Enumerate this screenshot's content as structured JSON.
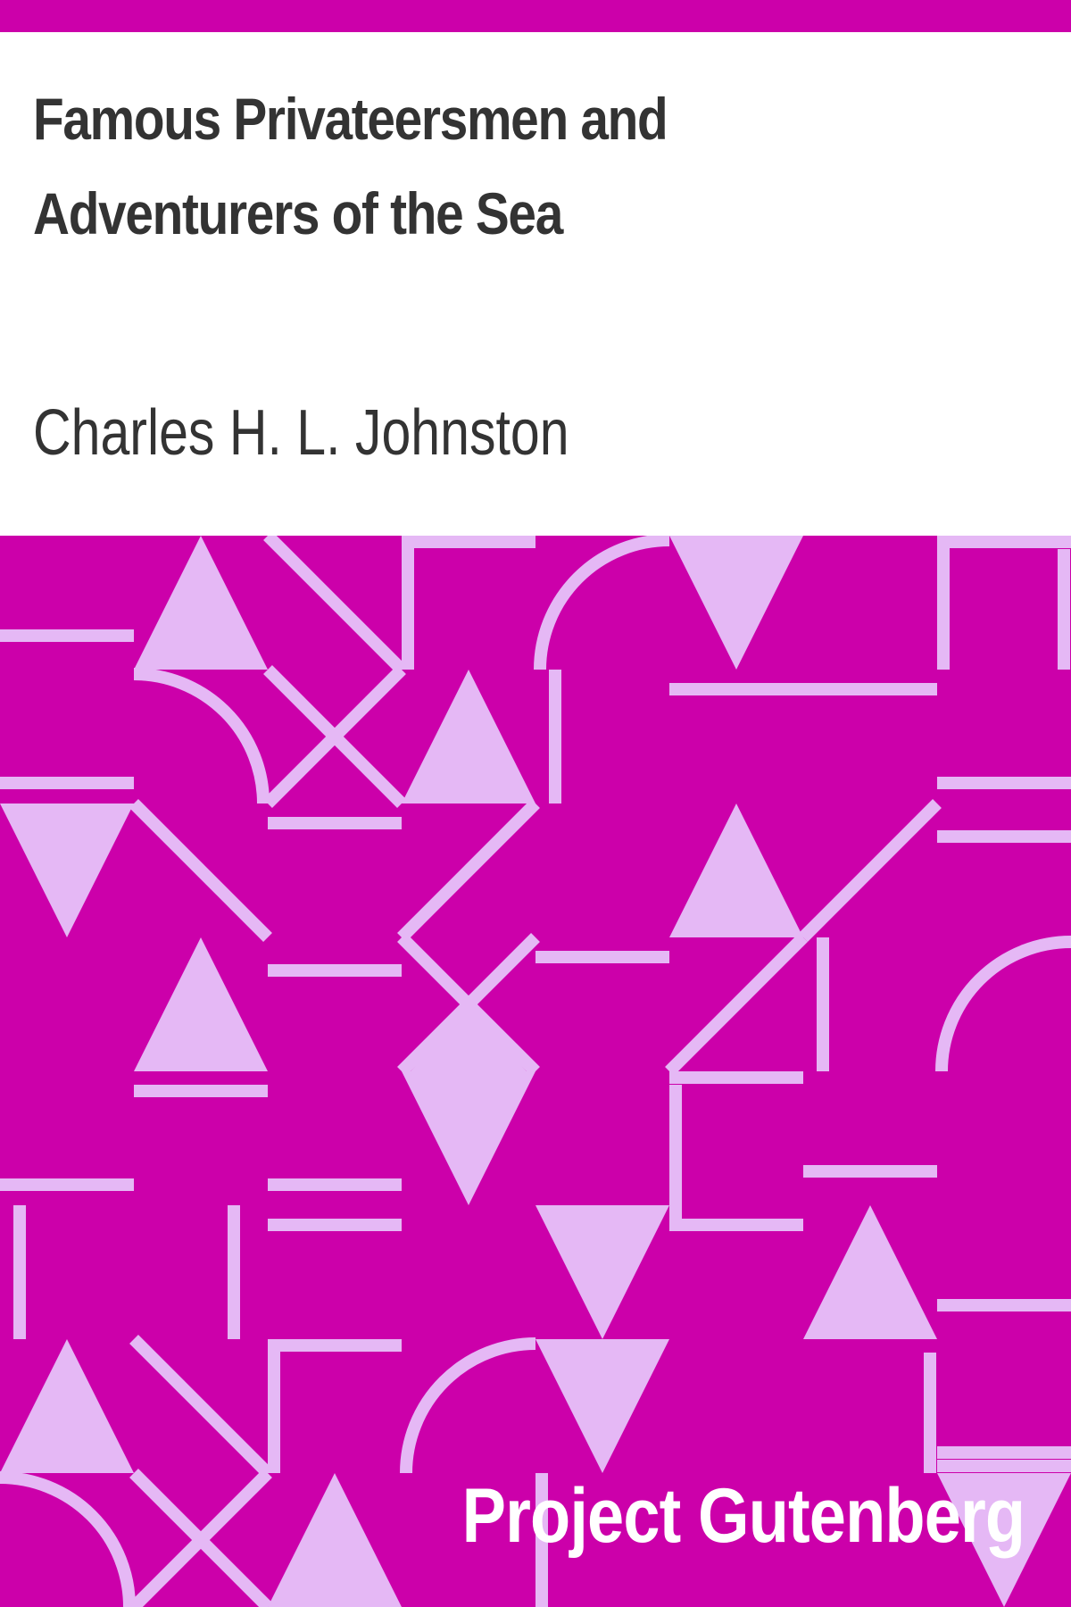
{
  "book": {
    "title": "Famous Privateersmen and Adventurers of the Sea",
    "author": "Charles H. L. Johnston",
    "publisher": "Project Gutenberg"
  },
  "colors": {
    "background": "#ffffff",
    "accent": "#cc00aa",
    "pattern_light": "#e5b8f5",
    "text_dark": "#333333",
    "text_light": "#ffffff"
  }
}
